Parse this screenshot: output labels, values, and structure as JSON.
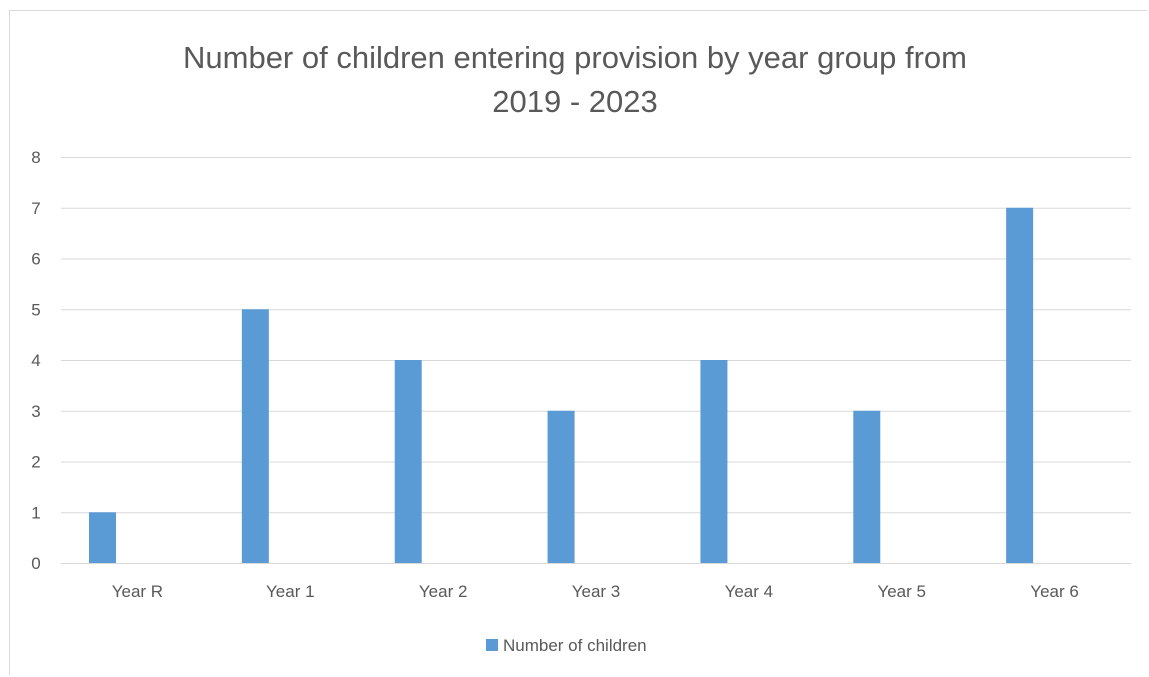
{
  "chart_data": {
    "type": "bar",
    "title_line1": "Number of children entering provision by year group from",
    "title_line2": "2019 - 2023",
    "categories": [
      "Year R",
      "Year 1",
      "Year 2",
      "Year 3",
      "Year 4",
      "Year 5",
      "Year 6"
    ],
    "series": [
      {
        "name": "Number of children",
        "values": [
          1,
          5,
          4,
          3,
          4,
          3,
          7
        ]
      }
    ],
    "ylim": [
      0,
      8
    ],
    "yticks": [
      "0",
      "1",
      "2",
      "3",
      "4",
      "5",
      "6",
      "7",
      "8"
    ],
    "grid": true,
    "legend_position": "bottom",
    "colors": {
      "bar": "#5B9BD5",
      "grid": "#d9d9d9",
      "text": "#595959"
    }
  }
}
